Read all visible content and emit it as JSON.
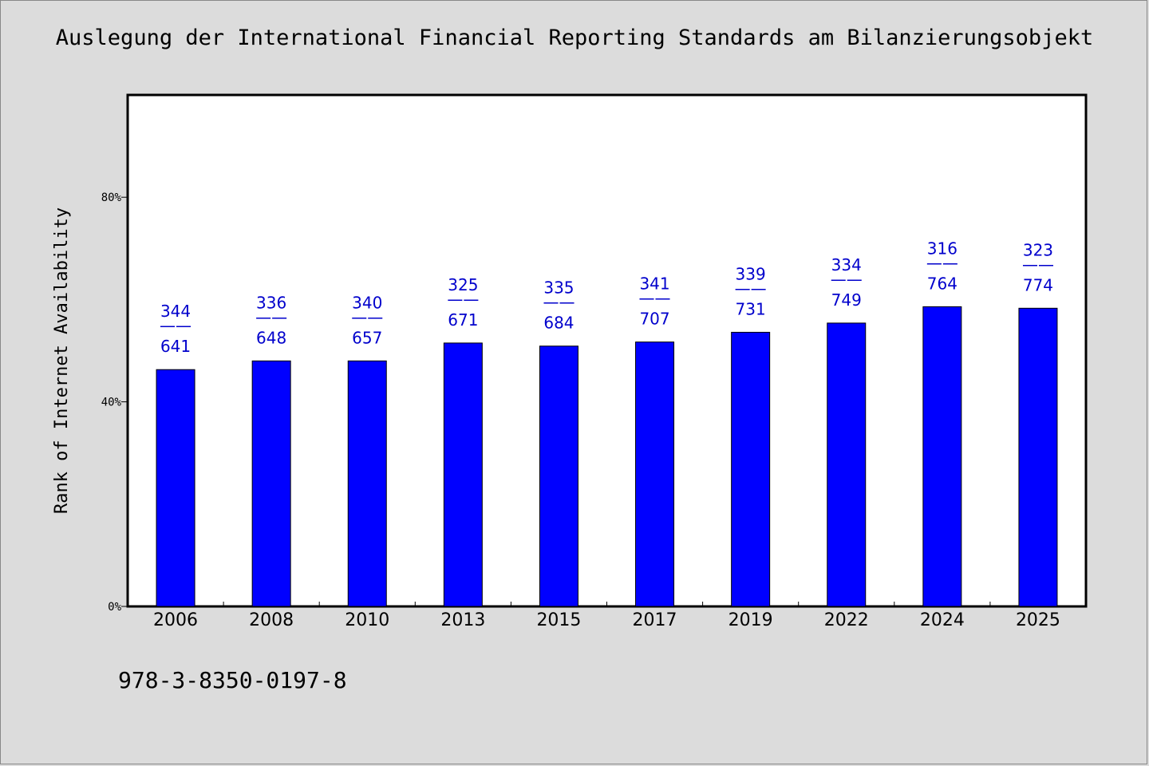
{
  "chart_data": {
    "type": "bar",
    "title": "Auslegung der International Financial Reporting Standards am Bilanzierungsobjekt",
    "ylabel": "Rank of Internet Availability",
    "xlabel": "",
    "ylim": [
      0,
      100
    ],
    "yticks": [
      {
        "value": 0,
        "label": "0%"
      },
      {
        "value": 40,
        "label": "40%"
      },
      {
        "value": 80,
        "label": "80%"
      }
    ],
    "categories": [
      "2006",
      "2008",
      "2010",
      "2013",
      "2015",
      "2017",
      "2019",
      "2022",
      "2024",
      "2025"
    ],
    "values": [
      46.3,
      48.0,
      48.0,
      51.5,
      50.9,
      51.7,
      53.6,
      55.4,
      58.6,
      58.3
    ],
    "labels": [
      {
        "top": "344",
        "sep": "——",
        "bottom": "641"
      },
      {
        "top": "336",
        "sep": "——",
        "bottom": "648"
      },
      {
        "top": "340",
        "sep": "——",
        "bottom": "657"
      },
      {
        "top": "325",
        "sep": "——",
        "bottom": "671"
      },
      {
        "top": "335",
        "sep": "——",
        "bottom": "684"
      },
      {
        "top": "341",
        "sep": "——",
        "bottom": "707"
      },
      {
        "top": "339",
        "sep": "——",
        "bottom": "731"
      },
      {
        "top": "334",
        "sep": "——",
        "bottom": "749"
      },
      {
        "top": "316",
        "sep": "——",
        "bottom": "764"
      },
      {
        "top": "323",
        "sep": "——",
        "bottom": "774"
      }
    ],
    "bar_color": "#0000ff",
    "label_color": "#0000cc",
    "grid": false,
    "legend": "none"
  },
  "footer": {
    "isbn": "978-3-8350-0197-8"
  }
}
